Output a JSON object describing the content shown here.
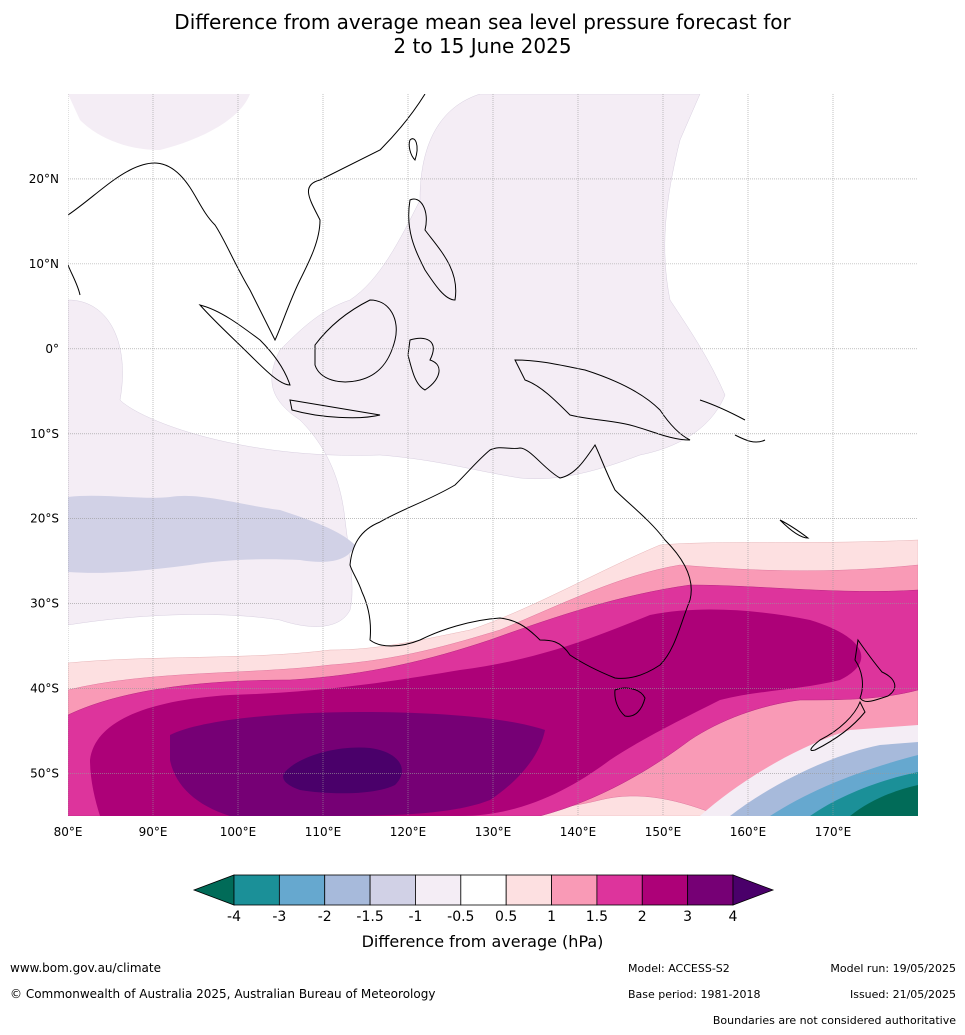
{
  "title": {
    "line1": "Difference from average mean sea level pressure forecast for",
    "line2": "2 to 15 June 2025"
  },
  "map": {
    "lon_labels": [
      "80°E",
      "90°E",
      "100°E",
      "110°E",
      "120°E",
      "130°E",
      "140°E",
      "150°E",
      "160°E",
      "170°E"
    ],
    "lon_values": [
      80,
      90,
      100,
      110,
      120,
      130,
      140,
      150,
      160,
      170
    ],
    "lat_labels": [
      "20°N",
      "10°N",
      "0°",
      "10°S",
      "20°S",
      "30°S",
      "40°S",
      "50°S"
    ],
    "lat_values": [
      20,
      10,
      0,
      -10,
      -20,
      -30,
      -40,
      -50
    ],
    "lon_range": [
      80,
      180
    ],
    "lat_range": [
      -55,
      30
    ],
    "grid": true
  },
  "colorbar": {
    "tick_labels": [
      "-4",
      "-3",
      "-2",
      "-1.5",
      "-1",
      "-0.5",
      "0.5",
      "1",
      "1.5",
      "2",
      "3",
      "4"
    ],
    "colors": [
      "#1b9098",
      "#66a8cf",
      "#a7badb",
      "#d1d1e6",
      "#f4edf5",
      "#ffffff",
      "#fde0e1",
      "#f99ab6",
      "#dd349c",
      "#ad0178",
      "#760075"
    ],
    "low_extend_color": "#016b58",
    "high_extend_color": "#4a006a",
    "label": "Difference from average (hPa)"
  },
  "footer": {
    "url": "www.bom.gov.au/climate",
    "copyright": "© Commonwealth of Australia 2025, Australian Bureau of Meteorology",
    "model": "Model: ACCESS-S2",
    "base_period": "Base period: 1981-2018",
    "model_run": "Model run: 19/05/2025",
    "issued": "Issued: 21/05/2025",
    "boundaries": "Boundaries are not considered authoritative"
  }
}
